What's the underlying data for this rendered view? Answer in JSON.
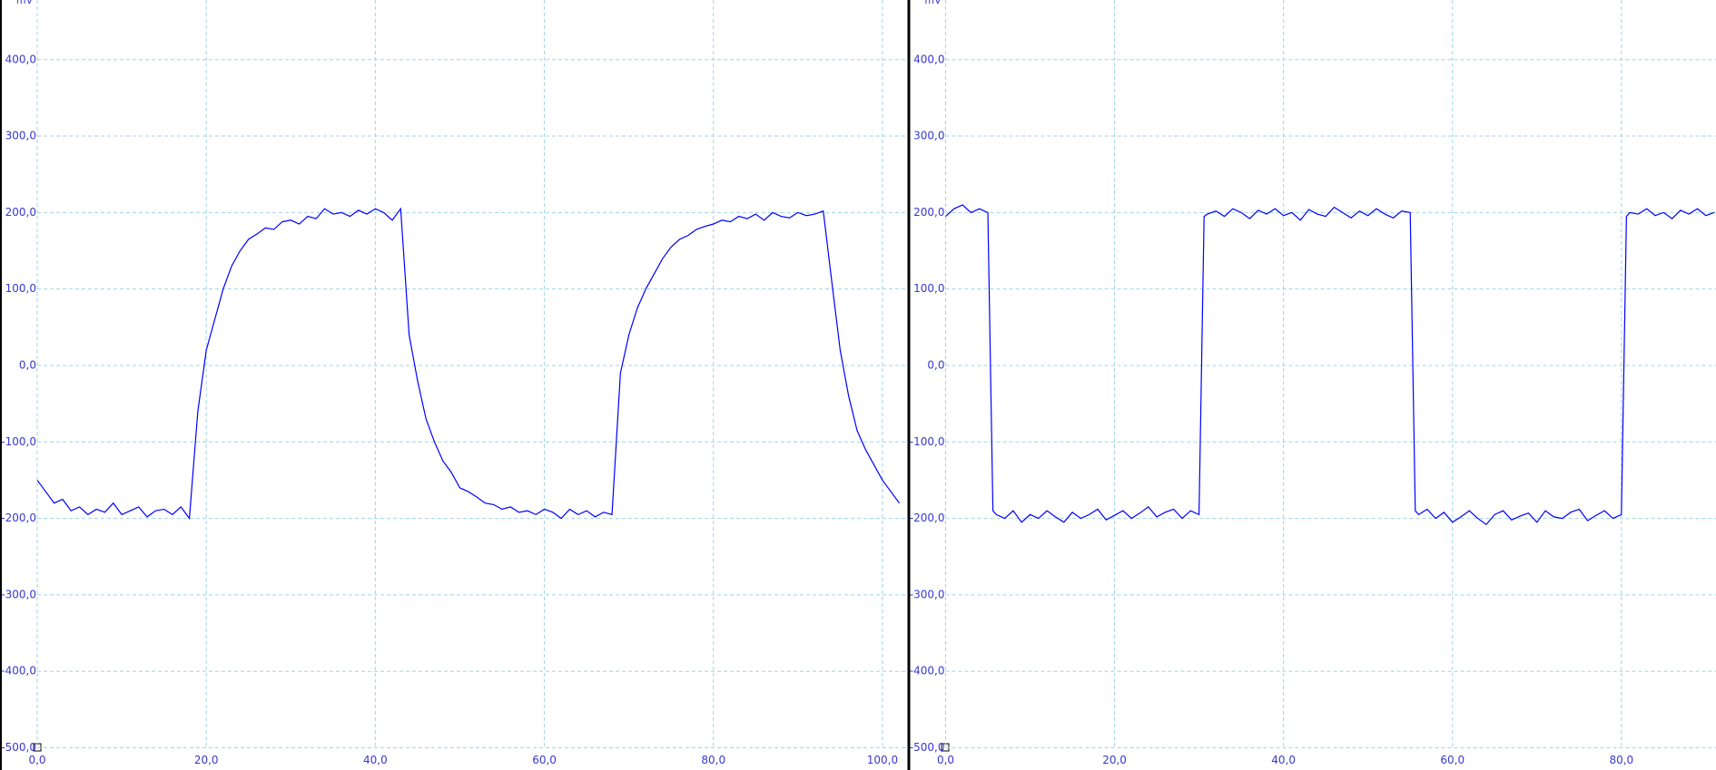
{
  "chart_data": [
    {
      "type": "line",
      "y_label": "mV",
      "color": "#0000ff",
      "grid": true,
      "xlim": [
        0,
        102.8
      ],
      "ylim": [
        -500,
        478
      ],
      "xticks": [
        {
          "value": 0,
          "label": "0,0"
        },
        {
          "value": 20,
          "label": "20,0"
        },
        {
          "value": 40,
          "label": "40,0"
        },
        {
          "value": 60,
          "label": "60,0"
        },
        {
          "value": 80,
          "label": "80,0"
        },
        {
          "value": 100,
          "label": "100,0"
        }
      ],
      "yticks": [
        {
          "value": 400,
          "label": "400,0"
        },
        {
          "value": 300,
          "label": "300,0"
        },
        {
          "value": 200,
          "label": "200,0"
        },
        {
          "value": 100,
          "label": "100,0"
        },
        {
          "value": 0,
          "label": "0,0"
        },
        {
          "value": -100,
          "label": "-100,0"
        },
        {
          "value": -200,
          "label": "-200,0"
        },
        {
          "value": -300,
          "label": "-300,0"
        },
        {
          "value": -400,
          "label": "-400,0"
        },
        {
          "value": -500,
          "label": "-500,0"
        }
      ],
      "x": [
        0,
        1,
        2,
        3,
        4,
        5,
        6,
        7,
        8,
        9,
        10,
        11,
        12,
        13,
        14,
        15,
        16,
        17,
        18,
        19,
        20,
        21,
        22,
        23,
        24,
        25,
        26,
        27,
        28,
        29,
        30,
        31,
        32,
        33,
        34,
        35,
        36,
        37,
        38,
        39,
        40,
        41,
        42,
        43,
        44,
        45,
        46,
        47,
        48,
        49,
        50,
        51,
        52,
        53,
        54,
        55,
        56,
        57,
        58,
        59,
        60,
        61,
        62,
        63,
        64,
        65,
        66,
        67,
        68,
        69,
        70,
        71,
        72,
        73,
        74,
        75,
        76,
        77,
        78,
        79,
        80,
        81,
        82,
        83,
        84,
        85,
        86,
        87,
        88,
        89,
        90,
        91,
        92,
        93,
        94,
        95,
        96,
        97,
        98,
        99,
        100,
        101,
        102
      ],
      "values": [
        -150,
        -165,
        -180,
        -175,
        -190,
        -185,
        -195,
        -188,
        -192,
        -180,
        -195,
        -190,
        -185,
        -198,
        -190,
        -188,
        -195,
        -185,
        -200,
        -60,
        20,
        60,
        100,
        130,
        150,
        165,
        172,
        180,
        178,
        188,
        190,
        185,
        195,
        192,
        205,
        198,
        200,
        195,
        203,
        198,
        205,
        200,
        190,
        205,
        40,
        -20,
        -70,
        -100,
        -125,
        -140,
        -160,
        -165,
        -172,
        -180,
        -182,
        -188,
        -185,
        -192,
        -190,
        -195,
        -188,
        -192,
        -200,
        -188,
        -195,
        -190,
        -198,
        -192,
        -195,
        -10,
        40,
        75,
        100,
        120,
        140,
        155,
        165,
        170,
        178,
        182,
        185,
        190,
        188,
        195,
        192,
        198,
        190,
        200,
        195,
        193,
        200,
        196,
        198,
        202,
        110,
        20,
        -40,
        -85,
        -110,
        -130,
        -150,
        -165,
        -180
      ]
    },
    {
      "type": "line",
      "y_label": "mV",
      "color": "#0000ff",
      "grid": true,
      "xlim": [
        0,
        91.2
      ],
      "ylim": [
        -500,
        478
      ],
      "xticks": [
        {
          "value": 0,
          "label": "0,0"
        },
        {
          "value": 20,
          "label": "20,0"
        },
        {
          "value": 40,
          "label": "40,0"
        },
        {
          "value": 60,
          "label": "60,0"
        },
        {
          "value": 80,
          "label": "80,0"
        }
      ],
      "yticks": [
        {
          "value": 400,
          "label": "400,0"
        },
        {
          "value": 300,
          "label": "300,0"
        },
        {
          "value": 200,
          "label": "200,0"
        },
        {
          "value": 100,
          "label": "100,0"
        },
        {
          "value": 0,
          "label": "0,0"
        },
        {
          "value": -100,
          "label": "-100,0"
        },
        {
          "value": -200,
          "label": "-200,0"
        },
        {
          "value": -300,
          "label": "-300,0"
        },
        {
          "value": -400,
          "label": "-400,0"
        },
        {
          "value": -500,
          "label": "-500,0"
        }
      ],
      "x": [
        0,
        1,
        2,
        3,
        4,
        5,
        5.6,
        6,
        7,
        8,
        9,
        10,
        11,
        12,
        13,
        14,
        15,
        16,
        17,
        18,
        19,
        20,
        21,
        22,
        23,
        24,
        25,
        26,
        27,
        28,
        29,
        30,
        30.6,
        31,
        32,
        33,
        34,
        35,
        36,
        37,
        38,
        39,
        40,
        41,
        42,
        43,
        44,
        45,
        46,
        47,
        48,
        49,
        50,
        51,
        52,
        53,
        54,
        55,
        55.6,
        56,
        57,
        58,
        59,
        60,
        61,
        62,
        63,
        64,
        65,
        66,
        67,
        68,
        69,
        70,
        71,
        72,
        73,
        74,
        75,
        76,
        77,
        78,
        79,
        80,
        80.6,
        81,
        82,
        83,
        84,
        85,
        86,
        87,
        88,
        89,
        90,
        91
      ],
      "values": [
        195,
        205,
        210,
        200,
        205,
        200,
        -190,
        -195,
        -200,
        -190,
        -205,
        -195,
        -200,
        -190,
        -198,
        -205,
        -192,
        -200,
        -195,
        -188,
        -202,
        -196,
        -190,
        -200,
        -193,
        -185,
        -198,
        -192,
        -188,
        -200,
        -190,
        -195,
        195,
        198,
        202,
        195,
        205,
        200,
        192,
        203,
        198,
        205,
        196,
        200,
        190,
        204,
        198,
        195,
        207,
        200,
        193,
        202,
        196,
        205,
        198,
        193,
        202,
        200,
        -190,
        -195,
        -188,
        -200,
        -192,
        -205,
        -198,
        -190,
        -200,
        -208,
        -195,
        -190,
        -202,
        -197,
        -193,
        -205,
        -190,
        -198,
        -200,
        -192,
        -188,
        -203,
        -196,
        -190,
        -200,
        -195,
        195,
        200,
        198,
        205,
        196,
        200,
        192,
        203,
        198,
        205,
        196,
        200
      ]
    }
  ]
}
